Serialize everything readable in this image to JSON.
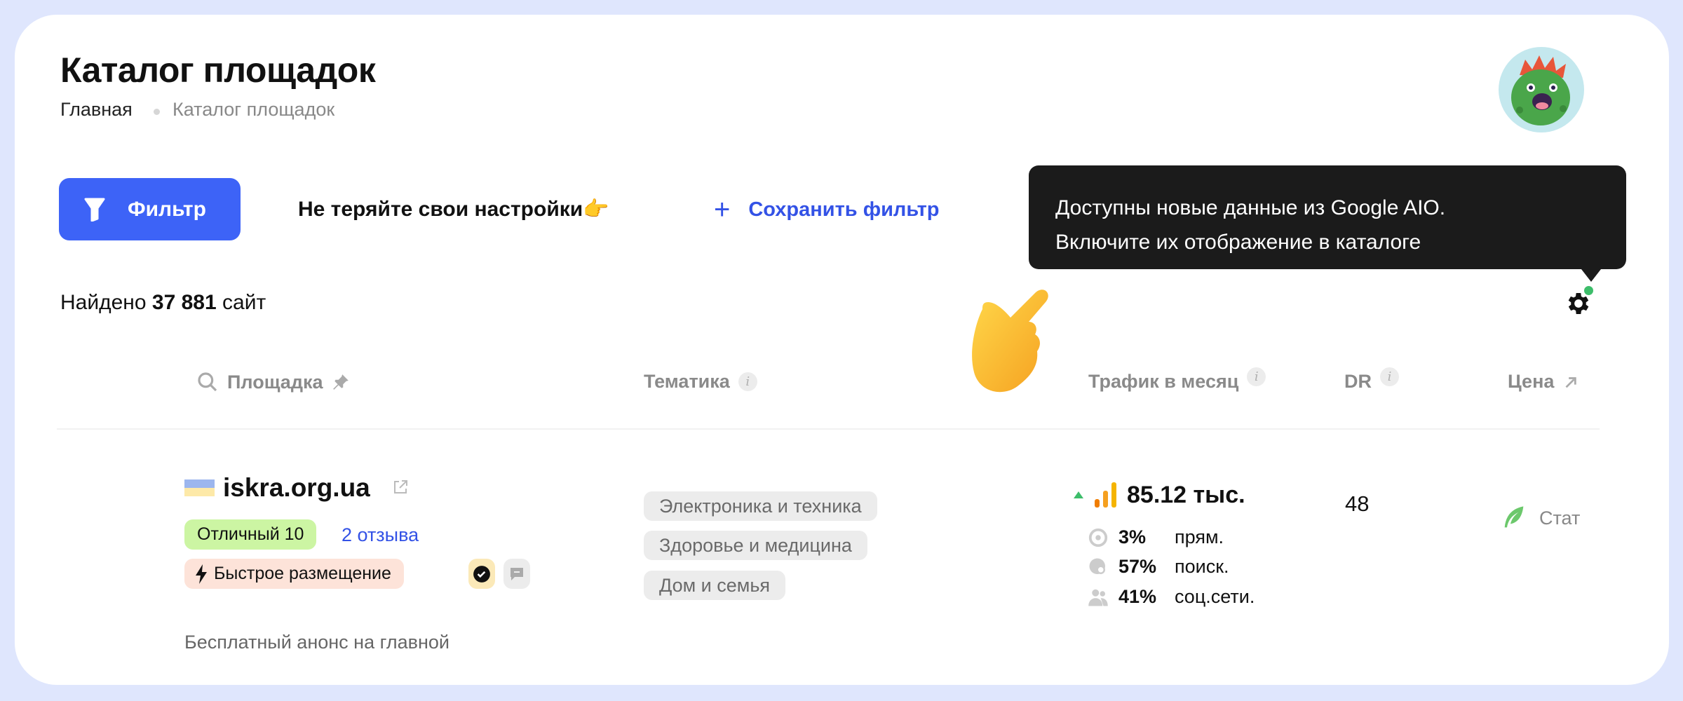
{
  "header": {
    "title": "Каталог площадок",
    "breadcrumb": [
      "Главная",
      "Каталог площадок"
    ]
  },
  "toolbar": {
    "filter_label": "Фильтр",
    "hint": "Не теряйте свои настройки👉",
    "save_filter_label": "Сохранить фильтр"
  },
  "results": {
    "prefix": "Найдено",
    "count": "37 881",
    "suffix": "сайт"
  },
  "tooltip": {
    "line1": "Доступны новые данные из Google AIO.",
    "line2": "Включите их отображение в каталоге"
  },
  "table": {
    "columns": [
      "Площадка",
      "Тематика",
      "Трафик в месяц",
      "DR",
      "Цена"
    ],
    "rows": [
      {
        "site": "iskra.org.ua",
        "rating": "Отличный 10",
        "reviews": "2 отзыва",
        "fast_badge": "Быстрое размещение",
        "note": "Бесплатный анонс на главной",
        "topics": [
          "Электроника и техника",
          "Здоровье и медицина",
          "Дом и семья"
        ],
        "traffic": {
          "total": "85.12 тыс.",
          "trend": "up",
          "sources": [
            {
              "pct": "3%",
              "label": "прям."
            },
            {
              "pct": "57%",
              "label": "поиск."
            },
            {
              "pct": "41%",
              "label": "соц.сети."
            }
          ]
        },
        "dr": "48",
        "price_label": "Стат"
      }
    ]
  },
  "colors": {
    "accent": "#3d63f7",
    "link": "#3352e6",
    "rating_bg": "#ccf5a3",
    "fast_bg": "#fde3d9",
    "tooltip_bg": "#1b1b1b",
    "notification_dot": "#3dbd6a"
  }
}
